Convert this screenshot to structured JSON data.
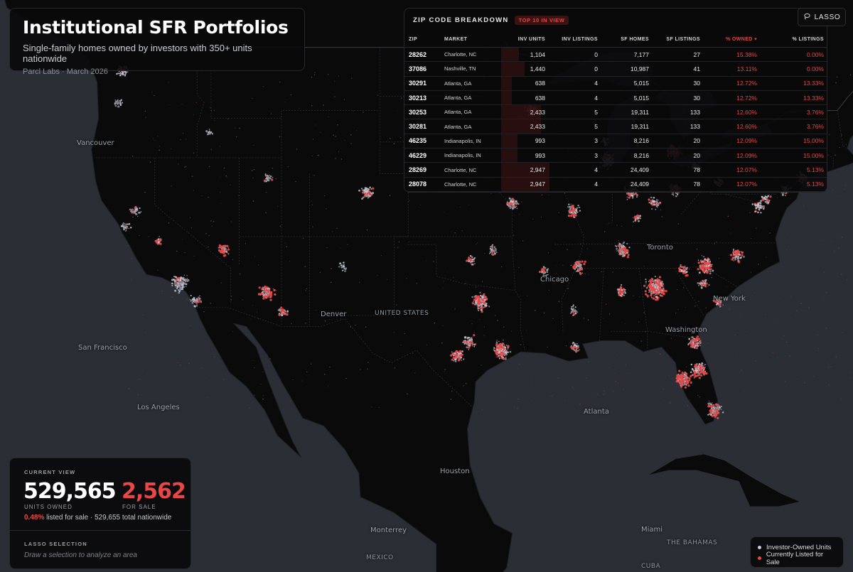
{
  "title": "Institutional SFR Portfolios",
  "subtitle": "Single-family homes owned by investors with 350+ units nationwide",
  "source": "Parcl Labs · March 2026",
  "zip_panel": {
    "title": "ZIP CODE BREAKDOWN",
    "badge": "TOP 10 IN VIEW",
    "columns": [
      "ZIP",
      "MARKET",
      "INV UNITS",
      "INV LISTINGS",
      "SF HOMES",
      "SF LISTINGS",
      "% OWNED ▾",
      "% LISTINGS"
    ],
    "rows": [
      {
        "zip": "28262",
        "market": "Charlotte, NC",
        "inv_units": "1,104",
        "inv_listings": "0",
        "sf_homes": "7,177",
        "sf_listings": "27",
        "pct_owned": "15.38%",
        "pct_listings": "0.00%"
      },
      {
        "zip": "37086",
        "market": "Nashville, TN",
        "inv_units": "1,440",
        "inv_listings": "0",
        "sf_homes": "10,987",
        "sf_listings": "41",
        "pct_owned": "13.11%",
        "pct_listings": "0.00%"
      },
      {
        "zip": "30291",
        "market": "Atlanta, GA",
        "inv_units": "638",
        "inv_listings": "4",
        "sf_homes": "5,015",
        "sf_listings": "30",
        "pct_owned": "12.72%",
        "pct_listings": "13.33%"
      },
      {
        "zip": "30213",
        "market": "Atlanta, GA",
        "inv_units": "638",
        "inv_listings": "4",
        "sf_homes": "5,015",
        "sf_listings": "30",
        "pct_owned": "12.72%",
        "pct_listings": "13.33%"
      },
      {
        "zip": "30253",
        "market": "Atlanta, GA",
        "inv_units": "2,433",
        "inv_listings": "5",
        "sf_homes": "19,311",
        "sf_listings": "133",
        "pct_owned": "12.60%",
        "pct_listings": "3.76%"
      },
      {
        "zip": "30281",
        "market": "Atlanta, GA",
        "inv_units": "2,433",
        "inv_listings": "5",
        "sf_homes": "19,311",
        "sf_listings": "133",
        "pct_owned": "12.60%",
        "pct_listings": "3.76%"
      },
      {
        "zip": "46235",
        "market": "Indianapolis, IN",
        "inv_units": "993",
        "inv_listings": "3",
        "sf_homes": "8,216",
        "sf_listings": "20",
        "pct_owned": "12.09%",
        "pct_listings": "15.00%"
      },
      {
        "zip": "46229",
        "market": "Indianapolis, IN",
        "inv_units": "993",
        "inv_listings": "3",
        "sf_homes": "8,216",
        "sf_listings": "20",
        "pct_owned": "12.09%",
        "pct_listings": "15.00%"
      },
      {
        "zip": "28269",
        "market": "Charlotte, NC",
        "inv_units": "2,947",
        "inv_listings": "4",
        "sf_homes": "24,409",
        "sf_listings": "78",
        "pct_owned": "12.07%",
        "pct_listings": "5.13%"
      },
      {
        "zip": "28078",
        "market": "Charlotte, NC",
        "inv_units": "2,947",
        "inv_listings": "4",
        "sf_homes": "24,409",
        "sf_listings": "78",
        "pct_owned": "12.07%",
        "pct_listings": "5.13%"
      }
    ],
    "max_units": 2947
  },
  "lasso_button": {
    "label": "LASSO",
    "icon": "lasso-icon"
  },
  "stats": {
    "label": "CURRENT VIEW",
    "units_owned": "529,565",
    "units_owned_label": "UNITS OWNED",
    "for_sale": "2,562",
    "for_sale_label": "FOR SALE",
    "pct_listed": "0.48%",
    "line_rest": " listed for sale · 529,655 total nationwide",
    "lasso_title": "LASSO SELECTION",
    "lasso_hint": "Draw a selection to analyze an area"
  },
  "legend": [
    {
      "label": "Investor-Owned Units",
      "color": "#c8cdd6"
    },
    {
      "label": "Currently Listed for Sale",
      "color": "#e94646"
    }
  ],
  "map": {
    "land_color": "#0a0a0a",
    "water_color": "#2b2f35",
    "labels": [
      "Vancouver",
      "San Francisco",
      "Los Angeles",
      "Denver",
      "UNITED STATES",
      "Chicago",
      "Toronto",
      "New York",
      "Washington",
      "Atlanta",
      "Houston",
      "Miami",
      "Monterrey",
      "MEXICO",
      "THE BAHAMAS",
      "CUBA"
    ],
    "clusters": [
      {
        "name": "Seattle",
        "lat": 47.5,
        "lon": -122.3,
        "n": 60,
        "red": 0.05
      },
      {
        "name": "Portland",
        "lat": 45.5,
        "lon": -122.6,
        "n": 25,
        "red": 0.05
      },
      {
        "name": "Boise",
        "lat": 43.6,
        "lon": -116.2,
        "n": 12,
        "red": 0.05
      },
      {
        "name": "Salt Lake City",
        "lat": 40.7,
        "lon": -111.9,
        "n": 30,
        "red": 0.05
      },
      {
        "name": "Sacramento",
        "lat": 38.6,
        "lon": -121.4,
        "n": 35,
        "red": 0.05
      },
      {
        "name": "Bay Area",
        "lat": 37.6,
        "lon": -122.1,
        "n": 30,
        "red": 0.05
      },
      {
        "name": "Fresno",
        "lat": 36.7,
        "lon": -119.8,
        "n": 20,
        "red": 0.1
      },
      {
        "name": "Los Angeles",
        "lat": 34.05,
        "lon": -118.2,
        "n": 140,
        "red": 0.05
      },
      {
        "name": "San Diego",
        "lat": 32.9,
        "lon": -117.1,
        "n": 50,
        "red": 0.05
      },
      {
        "name": "Las Vegas",
        "lat": 36.15,
        "lon": -115.1,
        "n": 50,
        "red": 0.4
      },
      {
        "name": "Phoenix",
        "lat": 33.45,
        "lon": -112.05,
        "n": 110,
        "red": 0.45
      },
      {
        "name": "Tucson",
        "lat": 32.2,
        "lon": -110.9,
        "n": 35,
        "red": 0.5
      },
      {
        "name": "Denver",
        "lat": 39.75,
        "lon": -104.95,
        "n": 70,
        "red": 0.15
      },
      {
        "name": "Albuquerque",
        "lat": 35.1,
        "lon": -106.6,
        "n": 20,
        "red": 0.1
      },
      {
        "name": "Minneapolis",
        "lat": 44.95,
        "lon": -93.25,
        "n": 70,
        "red": 0.05
      },
      {
        "name": "Kansas City",
        "lat": 39.05,
        "lon": -94.6,
        "n": 60,
        "red": 0.3
      },
      {
        "name": "Oklahoma City",
        "lat": 35.45,
        "lon": -97.5,
        "n": 30,
        "red": 0.2
      },
      {
        "name": "Tulsa",
        "lat": 36.1,
        "lon": -95.95,
        "n": 30,
        "red": 0.2
      },
      {
        "name": "Dallas",
        "lat": 32.85,
        "lon": -96.85,
        "n": 160,
        "red": 0.35
      },
      {
        "name": "Austin",
        "lat": 30.3,
        "lon": -97.7,
        "n": 70,
        "red": 0.3
      },
      {
        "name": "San Antonio",
        "lat": 29.45,
        "lon": -98.5,
        "n": 70,
        "red": 0.35
      },
      {
        "name": "Houston",
        "lat": 29.8,
        "lon": -95.4,
        "n": 150,
        "red": 0.4
      },
      {
        "name": "Chicago",
        "lat": 41.8,
        "lon": -87.8,
        "n": 120,
        "red": 0.1
      },
      {
        "name": "Milwaukee",
        "lat": 43.05,
        "lon": -88.0,
        "n": 25,
        "red": 0.05
      },
      {
        "name": "Detroit",
        "lat": 42.35,
        "lon": -83.15,
        "n": 90,
        "red": 0.5
      },
      {
        "name": "Indianapolis",
        "lat": 39.8,
        "lon": -86.15,
        "n": 90,
        "red": 0.3
      },
      {
        "name": "Columbus",
        "lat": 39.95,
        "lon": -83.0,
        "n": 60,
        "red": 0.3
      },
      {
        "name": "Cincinnati",
        "lat": 39.1,
        "lon": -84.5,
        "n": 50,
        "red": 0.2
      },
      {
        "name": "Cleveland",
        "lat": 41.45,
        "lon": -81.65,
        "n": 35,
        "red": 0.2
      },
      {
        "name": "St. Louis",
        "lat": 38.65,
        "lon": -90.3,
        "n": 70,
        "red": 0.3
      },
      {
        "name": "Memphis",
        "lat": 35.1,
        "lon": -89.9,
        "n": 70,
        "red": 0.35
      },
      {
        "name": "Nashville",
        "lat": 36.15,
        "lon": -86.75,
        "n": 90,
        "red": 0.3
      },
      {
        "name": "Louisville",
        "lat": 38.2,
        "lon": -85.7,
        "n": 30,
        "red": 0.2
      },
      {
        "name": "Birmingham",
        "lat": 33.5,
        "lon": -86.8,
        "n": 50,
        "red": 0.3
      },
      {
        "name": "Atlanta",
        "lat": 33.75,
        "lon": -84.4,
        "n": 260,
        "red": 0.45
      },
      {
        "name": "Charlotte",
        "lat": 35.2,
        "lon": -80.85,
        "n": 130,
        "red": 0.4
      },
      {
        "name": "Raleigh",
        "lat": 35.8,
        "lon": -78.65,
        "n": 70,
        "red": 0.3
      },
      {
        "name": "Greenville",
        "lat": 34.85,
        "lon": -82.4,
        "n": 40,
        "red": 0.3
      },
      {
        "name": "Columbia",
        "lat": 34.0,
        "lon": -81.0,
        "n": 40,
        "red": 0.3
      },
      {
        "name": "Charleston",
        "lat": 32.8,
        "lon": -80.0,
        "n": 30,
        "red": 0.3
      },
      {
        "name": "Jacksonville",
        "lat": 30.3,
        "lon": -81.65,
        "n": 80,
        "red": 0.35
      },
      {
        "name": "Orlando",
        "lat": 28.5,
        "lon": -81.35,
        "n": 120,
        "red": 0.4
      },
      {
        "name": "Tampa",
        "lat": 27.95,
        "lon": -82.45,
        "n": 120,
        "red": 0.45
      },
      {
        "name": "Miami",
        "lat": 26.0,
        "lon": -80.25,
        "n": 100,
        "red": 0.4
      },
      {
        "name": "Washington",
        "lat": 38.9,
        "lon": -77.05,
        "n": 50,
        "red": 0.2
      },
      {
        "name": "Baltimore",
        "lat": 39.3,
        "lon": -76.6,
        "n": 30,
        "red": 0.15
      },
      {
        "name": "Philadelphia",
        "lat": 39.95,
        "lon": -75.2,
        "n": 40,
        "red": 0.15
      },
      {
        "name": "New York",
        "lat": 40.75,
        "lon": -74.0,
        "n": 50,
        "red": 0.1
      },
      {
        "name": "Pittsburgh",
        "lat": 40.45,
        "lon": -79.95,
        "n": 25,
        "red": 0.2
      },
      {
        "name": "New Orleans",
        "lat": 29.95,
        "lon": -90.1,
        "n": 40,
        "red": 0.3
      },
      {
        "name": "Little Rock",
        "lat": 34.75,
        "lon": -92.3,
        "n": 30,
        "red": 0.2
      },
      {
        "name": "Jackson",
        "lat": 32.3,
        "lon": -90.2,
        "n": 25,
        "red": 0.2
      }
    ]
  }
}
